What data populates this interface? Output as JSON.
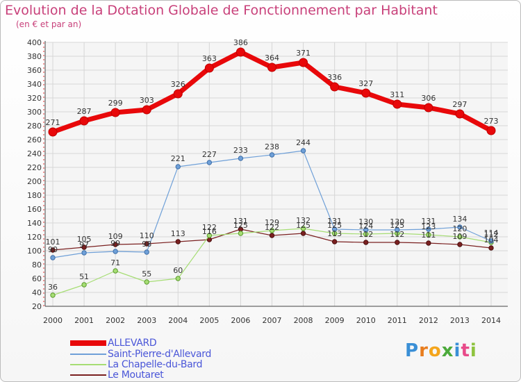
{
  "title": "Evolution de la Dotation Globale de Fonctionnement par Habitant",
  "subtitle": "(en € et par an)",
  "chart_data": {
    "type": "line",
    "title": "Evolution de la Dotation Globale de Fonctionnement par Habitant",
    "subtitle": "(en € et par an)",
    "xlabel": "",
    "ylabel": "",
    "x": [
      "2000",
      "2001",
      "2002",
      "2003",
      "2004",
      "2005",
      "2006",
      "2007",
      "2008",
      "2009",
      "2010",
      "2011",
      "2012",
      "2013",
      "2014"
    ],
    "ylim": [
      20,
      400
    ],
    "yticks": [
      20,
      40,
      60,
      80,
      100,
      120,
      140,
      160,
      180,
      200,
      220,
      240,
      260,
      280,
      300,
      320,
      340,
      360,
      380,
      400
    ],
    "grid": true,
    "legend_position": "bottom-left",
    "series": [
      {
        "name": "ALLEVARD",
        "color": "#e8080a",
        "values": [
          271,
          287,
          299,
          303,
          326,
          363,
          386,
          364,
          371,
          336,
          327,
          311,
          306,
          297,
          273
        ]
      },
      {
        "name": "Saint-Pierre-d'Allevard",
        "color": "#6fa0d8",
        "values": [
          90,
          97,
          99,
          98,
          221,
          227,
          233,
          238,
          244,
          131,
          130,
          130,
          131,
          134,
          114
        ]
      },
      {
        "name": "La Chapelle-du-Bard",
        "color": "#a6dd74",
        "values": [
          36,
          51,
          71,
          55,
          60,
          122,
          125,
          129,
          132,
          125,
          124,
          125,
          123,
          120,
          112
        ]
      },
      {
        "name": "Le Moutaret",
        "color": "#7a2020",
        "values": [
          101,
          105,
          109,
          110,
          113,
          116,
          131,
          122,
          125,
          113,
          112,
          112,
          111,
          109,
          104
        ]
      }
    ]
  },
  "logo": {
    "text": "Proxiti",
    "letters": [
      "P",
      "r",
      "o",
      "x",
      "i",
      "t",
      "i"
    ],
    "colors": [
      "#3a8fd6",
      "#e87d1e",
      "#f4a51c",
      "#4caa3b",
      "#3a8fd6",
      "#e84b8a",
      "#8fc33f"
    ]
  }
}
